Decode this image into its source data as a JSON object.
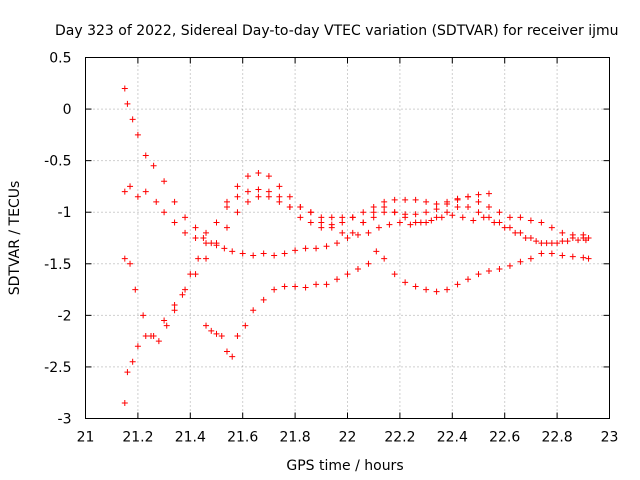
{
  "chart_data": {
    "type": "scatter",
    "title": "Day 323 of 2022, Sidereal Day-to-day VTEC variation (SDTVAR) for receiver ijmu",
    "xlabel": "GPS time / hours",
    "ylabel": "SDTVAR / TECUs",
    "xlim": [
      21,
      23
    ],
    "ylim": [
      -3,
      0.5
    ],
    "xticks": [
      21,
      21.2,
      21.4,
      21.6,
      21.8,
      22,
      22.2,
      22.4,
      22.6,
      22.8,
      23
    ],
    "xtick_labels": [
      "21",
      "21.2",
      "21.4",
      "21.6",
      "21.8",
      "22",
      "22.2",
      "22.4",
      "22.6",
      "22.8",
      "23"
    ],
    "yticks": [
      0.5,
      0,
      -0.5,
      -1,
      -1.5,
      -2,
      -2.5,
      -3
    ],
    "ytick_labels": [
      "0.5",
      "0",
      "-0.5",
      "-1",
      "-1.5",
      "-2",
      "-2.5",
      "-3"
    ],
    "grid": true,
    "marker": "+",
    "color": "#ff0000",
    "series": [
      {
        "name": "series-1",
        "x": [
          21.15,
          21.16,
          21.18,
          21.2,
          21.23,
          21.26,
          21.3,
          21.34,
          21.38,
          21.42,
          21.45,
          21.48,
          21.5,
          21.53,
          21.56,
          21.6,
          21.64,
          21.68,
          21.72,
          21.76,
          21.8,
          21.84,
          21.88,
          21.92,
          21.96,
          22.0,
          22.04,
          22.08,
          22.12,
          22.16,
          22.2,
          22.24,
          22.28,
          22.32,
          22.36,
          22.4,
          22.44,
          22.48,
          22.52,
          22.56,
          22.6,
          22.64,
          22.68,
          22.72,
          22.76,
          22.8,
          22.84,
          22.88,
          22.91
        ],
        "y": [
          0.2,
          0.05,
          -0.1,
          -0.25,
          -0.45,
          -0.55,
          -0.7,
          -0.9,
          -1.05,
          -1.15,
          -1.25,
          -1.3,
          -1.32,
          -1.35,
          -1.38,
          -1.4,
          -1.42,
          -1.4,
          -1.42,
          -1.4,
          -1.37,
          -1.35,
          -1.35,
          -1.33,
          -1.3,
          -1.25,
          -1.22,
          -1.2,
          -1.15,
          -1.12,
          -1.1,
          -1.12,
          -1.1,
          -1.08,
          -1.05,
          -1.03,
          -1.05,
          -1.08,
          -1.05,
          -1.1,
          -1.15,
          -1.2,
          -1.25,
          -1.28,
          -1.3,
          -1.3,
          -1.28,
          -1.27,
          -1.27
        ]
      },
      {
        "name": "series-2",
        "x": [
          21.15,
          21.17,
          21.2,
          21.23,
          21.27,
          21.3,
          21.34,
          21.38,
          21.42,
          21.46,
          21.5,
          21.54,
          21.58,
          21.62,
          21.66,
          21.7,
          21.74,
          21.78,
          21.82,
          21.86,
          21.9,
          21.94,
          21.98,
          22.02,
          22.06,
          22.1,
          22.14,
          22.18,
          22.22,
          22.26,
          22.3,
          22.34,
          22.38,
          22.42,
          22.46,
          22.5,
          22.54
        ],
        "y": [
          -0.8,
          -0.75,
          -0.85,
          -0.8,
          -0.9,
          -1.0,
          -1.1,
          -1.2,
          -1.25,
          -1.2,
          -1.1,
          -0.95,
          -0.85,
          -0.8,
          -0.78,
          -0.8,
          -0.85,
          -0.95,
          -1.05,
          -1.1,
          -1.15,
          -1.12,
          -1.1,
          -1.05,
          -1.0,
          -0.95,
          -0.9,
          -0.88,
          -0.88,
          -0.88,
          -0.9,
          -0.92,
          -0.9,
          -0.88,
          -0.85,
          -0.83,
          -0.82
        ]
      },
      {
        "name": "series-3",
        "x": [
          21.15,
          21.17,
          21.19,
          21.22,
          21.25,
          21.28,
          21.31,
          21.34,
          21.37,
          21.4,
          21.43,
          21.46,
          21.5,
          21.54,
          21.58,
          21.62,
          21.66,
          21.7,
          21.74,
          21.78,
          21.82,
          21.86,
          21.9,
          21.94,
          21.98,
          22.02,
          22.06,
          22.1,
          22.14,
          22.18,
          22.22,
          22.26,
          22.3,
          22.34,
          22.38,
          22.42,
          22.46,
          22.5,
          22.54,
          22.58,
          22.62,
          22.66,
          22.7,
          22.74,
          22.78,
          22.82,
          22.86,
          22.9
        ],
        "y": [
          -1.45,
          -1.5,
          -1.75,
          -2.0,
          -2.2,
          -2.25,
          -2.1,
          -1.95,
          -1.8,
          -1.6,
          -1.45,
          -1.3,
          -1.1,
          -0.9,
          -0.75,
          -0.65,
          -0.62,
          -0.65,
          -0.75,
          -0.85,
          -0.95,
          -1.0,
          -1.1,
          -1.15,
          -1.2,
          -1.2,
          -1.1,
          -1.0,
          -0.95,
          -1.0,
          -1.05,
          -1.1,
          -1.1,
          -1.05,
          -1.0,
          -0.95,
          -0.95,
          -1.0,
          -1.05,
          -1.1,
          -1.15,
          -1.2,
          -1.25,
          -1.3,
          -1.3,
          -1.28,
          -1.25,
          -1.22
        ]
      },
      {
        "name": "series-4",
        "x": [
          21.15,
          21.16,
          21.18,
          21.2,
          21.23,
          21.26,
          21.3,
          21.34,
          21.38,
          21.42,
          21.46,
          21.5,
          21.54,
          21.58,
          21.62,
          21.66,
          21.7,
          21.74,
          21.78,
          21.82,
          21.86,
          21.9,
          21.94,
          21.98,
          22.02,
          22.06,
          22.1,
          22.14,
          22.18,
          22.22,
          22.26,
          22.3,
          22.34,
          22.38,
          22.42,
          22.46,
          22.5,
          22.54,
          22.58,
          22.62,
          22.66,
          22.7,
          22.74,
          22.78,
          22.82,
          22.86,
          22.9,
          22.92
        ],
        "y": [
          -2.85,
          -2.55,
          -2.45,
          -2.3,
          -2.2,
          -2.2,
          -2.05,
          -1.9,
          -1.75,
          -1.6,
          -1.45,
          -1.3,
          -1.15,
          -1.0,
          -0.9,
          -0.85,
          -0.85,
          -0.9,
          -0.95,
          -0.95,
          -1.0,
          -1.05,
          -1.05,
          -1.05,
          -1.05,
          -1.1,
          -1.05,
          -1.0,
          -1.0,
          -1.02,
          -1.02,
          -1.0,
          -0.97,
          -0.92,
          -0.87,
          -0.85,
          -0.9,
          -0.95,
          -1.0,
          -1.05,
          -1.05,
          -1.08,
          -1.1,
          -1.15,
          -1.2,
          -1.22,
          -1.25,
          -1.25
        ]
      },
      {
        "name": "series-5",
        "x": [
          21.46,
          21.48,
          21.5,
          21.52,
          21.54,
          21.56,
          21.58,
          21.61,
          21.64,
          21.68,
          21.72,
          21.76,
          21.8,
          21.84,
          21.88,
          21.92,
          21.96,
          22.0,
          22.04,
          22.08,
          22.11,
          22.14,
          22.18,
          22.22,
          22.26,
          22.3,
          22.34,
          22.38,
          22.42,
          22.46,
          22.5,
          22.54,
          22.58,
          22.62,
          22.66,
          22.7,
          22.74,
          22.78,
          22.82,
          22.86,
          22.9,
          22.92
        ],
        "y": [
          -2.1,
          -2.15,
          -2.18,
          -2.2,
          -2.35,
          -2.4,
          -2.2,
          -2.1,
          -1.95,
          -1.85,
          -1.75,
          -1.72,
          -1.72,
          -1.73,
          -1.7,
          -1.7,
          -1.65,
          -1.6,
          -1.55,
          -1.5,
          -1.38,
          -1.45,
          -1.6,
          -1.68,
          -1.72,
          -1.75,
          -1.77,
          -1.75,
          -1.7,
          -1.65,
          -1.6,
          -1.57,
          -1.55,
          -1.52,
          -1.48,
          -1.45,
          -1.4,
          -1.4,
          -1.42,
          -1.43,
          -1.44,
          -1.45
        ]
      }
    ]
  }
}
